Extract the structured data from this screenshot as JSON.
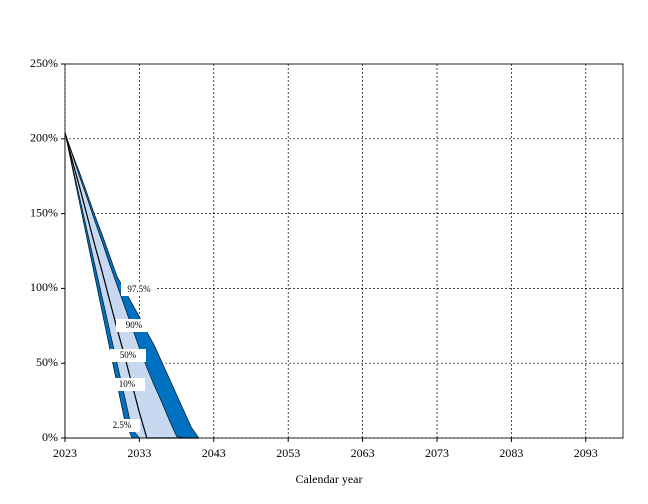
{
  "chart_data": {
    "type": "area",
    "x_label": "Calendar year",
    "x": [
      2023,
      2024,
      2025,
      2026,
      2027,
      2028,
      2029,
      2030,
      2031,
      2032,
      2033,
      2034,
      2035,
      2036,
      2037,
      2038,
      2039,
      2040,
      2041
    ],
    "series": [
      {
        "name": "97.5%",
        "color": "#0070c0",
        "values": [
          204,
          190,
          177,
          163,
          149,
          136,
          122,
          108,
          99,
          90,
          81,
          71,
          62,
          51,
          40,
          29,
          18,
          7,
          0
        ]
      },
      {
        "name": "90%",
        "color": "#c6d9f0",
        "values": [
          204,
          189,
          174,
          160,
          145,
          131,
          116,
          102,
          88,
          74,
          60,
          47,
          35,
          24,
          12,
          1,
          0,
          0,
          0
        ]
      },
      {
        "name": "50%",
        "color": "#000000",
        "values": [
          204,
          185,
          167,
          148,
          129,
          111,
          92,
          73,
          55,
          36,
          17,
          0,
          0,
          0,
          0,
          0,
          0,
          0,
          0
        ]
      },
      {
        "name": "10%",
        "color": "#0070c0",
        "values": [
          204,
          182,
          160,
          138,
          116,
          94,
          72,
          50,
          28,
          6,
          0,
          0,
          0,
          0,
          0,
          0,
          0,
          0,
          0
        ]
      },
      {
        "name": "2.5%",
        "color": "#ffffff",
        "values": [
          204,
          180,
          156,
          132,
          108,
          84,
          60,
          36,
          12,
          0,
          0,
          0,
          0,
          0,
          0,
          0,
          0,
          0,
          0
        ]
      }
    ],
    "xlim": [
      2023,
      2098
    ],
    "xticks": [
      2023,
      2033,
      2043,
      2053,
      2063,
      2073,
      2083,
      2093
    ],
    "ylim": [
      0,
      250
    ],
    "yticks": [
      {
        "value": 0,
        "label": "0%"
      },
      {
        "value": 50,
        "label": "50%"
      },
      {
        "value": 100,
        "label": "100%"
      },
      {
        "value": 150,
        "label": "150%"
      },
      {
        "value": 200,
        "label": "200%"
      },
      {
        "value": 250,
        "label": "250%"
      }
    ],
    "grid": true
  }
}
